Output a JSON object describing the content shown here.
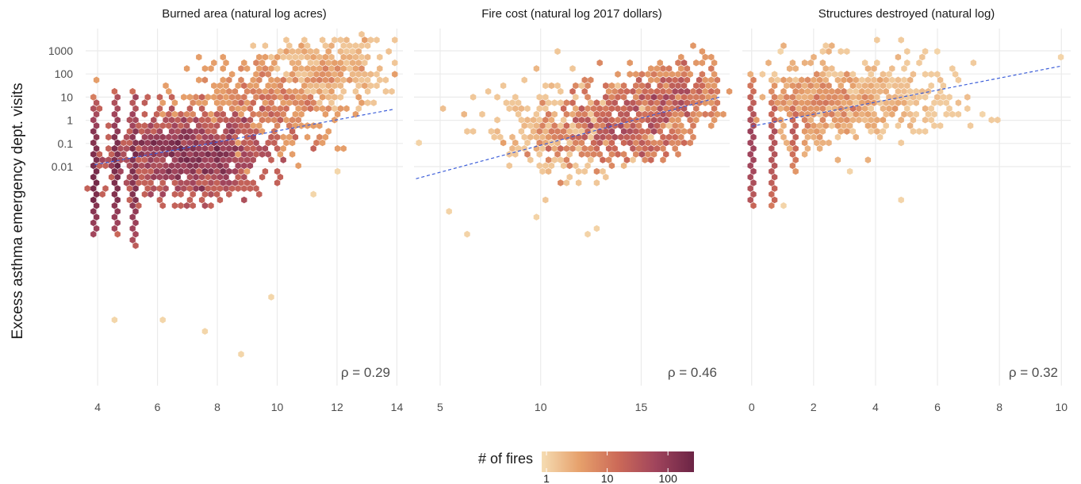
{
  "chart_data": {
    "type": "hexbin",
    "ylabel": "Excess asthma emergency dept. visits",
    "y_scale": "log10",
    "y_ticks": [
      "1000",
      "100",
      "10",
      "1",
      "0.1",
      "0.01"
    ],
    "legend": {
      "title": "# of fires",
      "scale": "log10",
      "ticks": [
        "1",
        "10",
        "100"
      ],
      "colors": [
        "#f5dcb2",
        "#e6a06b",
        "#cc6a58",
        "#a0445c",
        "#6b2445"
      ]
    },
    "fit_line_color": "#3d5fd9",
    "panels": [
      {
        "title": "Burned area (natural log acres)",
        "x_ticks": [
          "4",
          "6",
          "8",
          "10",
          "12",
          "14"
        ],
        "xlim": [
          3.6,
          14.2
        ],
        "annotation": "ρ = 0.29",
        "fit_line": {
          "x": [
            3.9,
            13.9
          ],
          "y": [
            0.012,
            3.0
          ]
        },
        "hex_clusters": [
          {
            "x_center": 7.0,
            "x_spread": 1.3,
            "logy_center": -1.5,
            "logy_spread": 0.9,
            "count_scale": 160
          },
          {
            "x_center": 9.5,
            "x_spread": 1.4,
            "logy_center": 0.8,
            "logy_spread": 1.0,
            "count_scale": 25
          },
          {
            "x_center": 11.8,
            "x_spread": 0.9,
            "logy_center": 2.3,
            "logy_spread": 0.7,
            "count_scale": 5
          }
        ],
        "hex_columns": [
          {
            "x": 3.9,
            "logy_min": -5.0,
            "logy_max": 1.0,
            "count_scale": 200
          },
          {
            "x": 4.6,
            "logy_min": -4.8,
            "logy_max": 1.3,
            "count_scale": 180
          },
          {
            "x": 5.2,
            "logy_min": -5.4,
            "logy_max": 1.3,
            "count_scale": 140
          }
        ],
        "hex_outliers": [
          {
            "x": 8.8,
            "logy": -10.0
          },
          {
            "x": 7.5,
            "logy": -9.2
          },
          {
            "x": 6.2,
            "logy": -8.6
          },
          {
            "x": 9.9,
            "logy": -7.7
          },
          {
            "x": 4.6,
            "logy": -8.5
          },
          {
            "x": 13.7,
            "logy": 3.0
          },
          {
            "x": 12.0,
            "logy": -2.1
          },
          {
            "x": 11.3,
            "logy": -3.2
          }
        ]
      },
      {
        "title": "Fire cost (natural log 2017 dollars)",
        "x_ticks": [
          "5",
          "10",
          "15"
        ],
        "xlim": [
          3.7,
          19.4
        ],
        "annotation": "ρ = 0.46",
        "fit_line": {
          "x": [
            3.8,
            18.9
          ],
          "y": [
            0.003,
            10.0
          ]
        },
        "hex_clusters": [
          {
            "x_center": 13.8,
            "x_spread": 1.7,
            "logy_center": -0.3,
            "logy_spread": 0.8,
            "count_scale": 22
          },
          {
            "x_center": 16.7,
            "x_spread": 1.2,
            "logy_center": 1.1,
            "logy_spread": 0.7,
            "count_scale": 15
          },
          {
            "x_center": 11.0,
            "x_spread": 2.0,
            "logy_center": -0.3,
            "logy_spread": 1.0,
            "count_scale": 3
          }
        ],
        "hex_columns": [],
        "hex_outliers": [
          {
            "x": 4.0,
            "logy": -1.0
          },
          {
            "x": 5.5,
            "logy": -4.0
          },
          {
            "x": 6.4,
            "logy": -5.0
          },
          {
            "x": 12.2,
            "logy": -5.0
          },
          {
            "x": 9.9,
            "logy": -4.1
          },
          {
            "x": 12.8,
            "logy": -4.6
          },
          {
            "x": 17.3,
            "logy": -1.0
          },
          {
            "x": 5.1,
            "logy": 0.5
          }
        ]
      },
      {
        "title": "Structures destroyed (natural log)",
        "x_ticks": [
          "0",
          "2",
          "4",
          "6",
          "8",
          "10"
        ],
        "xlim": [
          -0.3,
          10.3
        ],
        "annotation": "ρ = 0.32",
        "fit_line": {
          "x": [
            0.0,
            10.0
          ],
          "y": [
            0.55,
            220.0
          ]
        },
        "hex_clusters": [
          {
            "x_center": 2.2,
            "x_spread": 1.0,
            "logy_center": 0.6,
            "logy_spread": 0.8,
            "count_scale": 10
          },
          {
            "x_center": 4.2,
            "x_spread": 1.3,
            "logy_center": 1.0,
            "logy_spread": 0.8,
            "count_scale": 3
          }
        ],
        "hex_columns": [
          {
            "x": 0.0,
            "logy_min": -3.8,
            "logy_max": 1.9,
            "count_scale": 35
          },
          {
            "x": 0.7,
            "logy_min": -3.8,
            "logy_max": 1.7,
            "count_scale": 20
          },
          {
            "x": 1.4,
            "logy_min": -2.2,
            "logy_max": 1.7,
            "count_scale": 12
          }
        ],
        "hex_outliers": [
          {
            "x": 1.0,
            "logy": 3.0
          },
          {
            "x": 7.5,
            "logy": 0.2
          },
          {
            "x": 4.9,
            "logy": -3.4
          },
          {
            "x": 3.2,
            "logy": -2.2
          },
          {
            "x": 9.9,
            "logy": 2.7
          },
          {
            "x": 6.0,
            "logy": 2.9
          },
          {
            "x": 5.5,
            "logy": 2.8
          },
          {
            "x": 1.0,
            "logy": -3.8
          }
        ]
      }
    ]
  }
}
